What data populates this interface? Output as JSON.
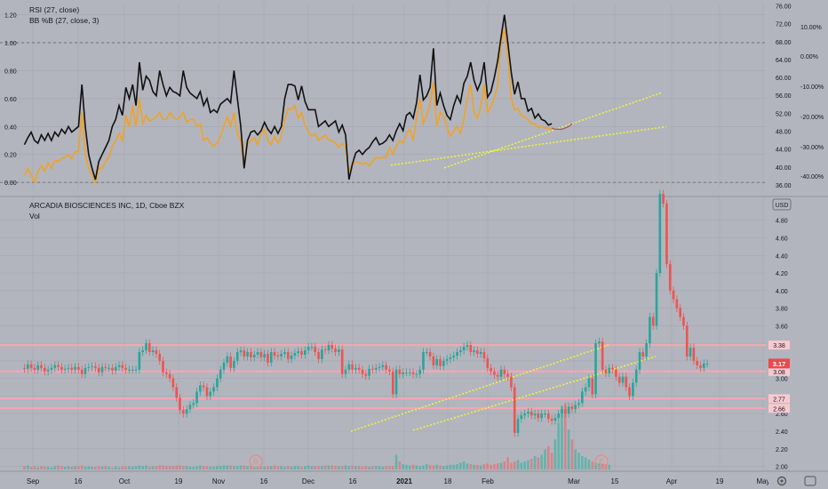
{
  "colors": {
    "background": "#b2b5be",
    "grid": "#a5a8b0",
    "rsi": "#111111",
    "bbpb": "#f5a11c",
    "up": "#26a69a",
    "down": "#ef5350",
    "level_line": "#f8a6b0",
    "trend": "#f0f23c",
    "last_price": "#e74c4c"
  },
  "chart_data": [
    {
      "type": "line",
      "panel": "indicators",
      "legend": [
        "RSI (27, close)",
        "BB %B (27, close, 3)"
      ],
      "left_axis_ticks": [
        "1.20",
        "1.00",
        "0.80",
        "0.60",
        "0.40",
        "0.20",
        "0.00"
      ],
      "left_axis_range": [
        -0.05,
        1.28
      ],
      "right_axis_ticks": [
        "76.00",
        "72.00",
        "68.00",
        "64.00",
        "60.00",
        "56.00",
        "52.00",
        "48.00",
        "44.00",
        "40.00",
        "36.00"
      ],
      "right_axis_range": [
        35,
        76.5
      ],
      "right_pct_ticks": [
        "10.00%",
        "0.00%",
        "-10.00%",
        "-20.00%",
        "-30.00%",
        "-40.00%"
      ],
      "bbpb_reference_lines": [
        1.0,
        0.0
      ],
      "rsi": [
        0.27,
        0.32,
        0.36,
        0.3,
        0.28,
        0.34,
        0.3,
        0.35,
        0.3,
        0.36,
        0.33,
        0.38,
        0.35,
        0.4,
        0.36,
        0.38,
        0.4,
        0.7,
        0.4,
        0.2,
        0.1,
        0.02,
        0.15,
        0.2,
        0.25,
        0.3,
        0.4,
        0.45,
        0.55,
        0.48,
        0.68,
        0.6,
        0.7,
        0.55,
        0.86,
        0.66,
        0.76,
        0.73,
        0.65,
        0.62,
        0.8,
        0.7,
        0.62,
        0.68,
        0.65,
        0.64,
        0.62,
        0.8,
        0.68,
        0.64,
        0.62,
        0.6,
        0.65,
        0.55,
        0.6,
        0.5,
        0.52,
        0.5,
        0.56,
        0.58,
        0.6,
        0.57,
        0.8,
        0.6,
        0.4,
        0.1,
        0.3,
        0.36,
        0.37,
        0.34,
        0.37,
        0.43,
        0.38,
        0.35,
        0.4,
        0.35,
        0.4,
        0.6,
        0.7,
        0.7,
        0.69,
        0.59,
        0.69,
        0.58,
        0.52,
        0.52,
        0.52,
        0.4,
        0.42,
        0.44,
        0.4,
        0.42,
        0.44,
        0.36,
        0.41,
        0.34,
        0.02,
        0.13,
        0.21,
        0.23,
        0.2,
        0.23,
        0.25,
        0.29,
        0.32,
        0.27,
        0.28,
        0.3,
        0.34,
        0.3,
        0.37,
        0.42,
        0.37,
        0.48,
        0.5,
        0.46,
        0.57,
        0.77,
        0.59,
        0.62,
        0.68,
        0.96,
        0.55,
        0.64,
        0.55,
        0.48,
        0.45,
        0.55,
        0.62,
        0.57,
        0.71,
        0.76,
        0.86,
        0.73,
        0.66,
        0.72,
        0.86,
        0.61,
        0.65,
        0.75,
        0.87,
        1.04,
        1.2,
        1.0,
        0.79,
        0.63,
        0.72,
        0.6,
        0.6,
        0.51,
        0.53,
        0.46,
        0.49,
        0.45,
        0.44,
        0.41,
        0.42
      ],
      "bbpb": [
        0.05,
        0.1,
        0.05,
        0.0,
        0.08,
        0.12,
        0.08,
        0.14,
        0.1,
        0.16,
        0.15,
        0.17,
        0.18,
        0.2,
        0.17,
        0.22,
        0.22,
        0.5,
        0.2,
        0.1,
        0.05,
        0.0,
        0.1,
        0.1,
        0.15,
        0.18,
        0.26,
        0.3,
        0.35,
        0.3,
        0.48,
        0.4,
        0.55,
        0.4,
        0.6,
        0.42,
        0.48,
        0.44,
        0.45,
        0.47,
        0.5,
        0.45,
        0.45,
        0.5,
        0.47,
        0.45,
        0.47,
        0.5,
        0.43,
        0.45,
        0.45,
        0.4,
        0.42,
        0.3,
        0.32,
        0.28,
        0.26,
        0.28,
        0.33,
        0.4,
        0.47,
        0.4,
        0.5,
        0.35,
        0.3,
        0.1,
        0.27,
        0.3,
        0.32,
        0.27,
        0.35,
        0.38,
        0.3,
        0.27,
        0.33,
        0.28,
        0.33,
        0.45,
        0.53,
        0.52,
        0.55,
        0.46,
        0.5,
        0.41,
        0.36,
        0.33,
        0.35,
        0.3,
        0.32,
        0.34,
        0.3,
        0.3,
        0.28,
        0.25,
        0.28,
        0.25,
        0.08,
        0.12,
        0.15,
        0.14,
        0.13,
        0.14,
        0.12,
        0.15,
        0.18,
        0.17,
        0.18,
        0.18,
        0.25,
        0.2,
        0.26,
        0.3,
        0.28,
        0.35,
        0.38,
        0.3,
        0.46,
        0.6,
        0.42,
        0.48,
        0.56,
        0.72,
        0.4,
        0.5,
        0.48,
        0.4,
        0.33,
        0.37,
        0.4,
        0.35,
        0.45,
        0.6,
        0.7,
        0.5,
        0.46,
        0.54,
        0.7,
        0.5,
        0.54,
        0.6,
        0.7,
        1.0,
        1.1,
        0.9,
        0.6,
        0.52,
        0.53,
        0.48,
        0.47,
        0.45,
        0.42,
        0.42,
        0.39,
        0.4,
        0.39,
        0.39,
        0.38
      ],
      "bbpb_tail": [
        0.39,
        0.38,
        0.38,
        0.38,
        0.39,
        0.4,
        0.42
      ],
      "trendlines_right_scale": [
        [
          40.4,
          49.0
        ],
        [
          39.8,
          56.6
        ]
      ]
    },
    {
      "type": "candlestick",
      "panel": "price",
      "title": "ARCADIA BIOSCIENCES INC, 1D, Cboe BZX",
      "volume_label": "Vol",
      "currency": "USD",
      "y_ticks": [
        "4.80",
        "4.60",
        "4.40",
        "4.20",
        "4.00",
        "3.80",
        "3.60",
        "3.40",
        "3.20",
        "3.00",
        "2.80",
        "2.60",
        "2.40",
        "2.20",
        "2.00"
      ],
      "y_range": [
        1.965,
        5.06
      ],
      "x_ticks": [
        "Sep",
        "16",
        "Oct",
        "19",
        "Nov",
        "16",
        "Dec",
        "16",
        "2021",
        "18",
        "Feb",
        "Mar",
        "15",
        "Apr",
        "19",
        "May"
      ],
      "horizontal_levels": [
        {
          "value": 3.38,
          "label": "3.38"
        },
        {
          "value": 3.08,
          "label": "3.08"
        },
        {
          "value": 2.77,
          "label": "2.77"
        },
        {
          "value": 2.66,
          "label": "2.66"
        }
      ],
      "last_price": "3.17",
      "candle_open": [
        3.12,
        3.11,
        3.16,
        3.12,
        3.1,
        3.15,
        3.12,
        3.08,
        3.1,
        3.12,
        3.15,
        3.13,
        3.1,
        3.11,
        3.12,
        3.1,
        3.13,
        3.1,
        3.05,
        3.12,
        3.13,
        3.14,
        3.12,
        3.07,
        3.13,
        3.12,
        3.12,
        3.09,
        3.13,
        3.15,
        3.12,
        3.1,
        3.1,
        3.1,
        3.1,
        3.3,
        3.32,
        3.4,
        3.3,
        3.32,
        3.28,
        3.2,
        3.07,
        3.05,
        3.0,
        2.9,
        2.78,
        2.64,
        2.6,
        2.65,
        2.7,
        2.72,
        2.85,
        2.92,
        2.9,
        2.8,
        2.85,
        2.9,
        3.0,
        3.1,
        3.18,
        3.25,
        3.12,
        3.2,
        3.3,
        3.32,
        3.25,
        3.3,
        3.24,
        3.27,
        3.3,
        3.24,
        3.28,
        3.18,
        3.3,
        3.26,
        3.25,
        3.28,
        3.3,
        3.22,
        3.26,
        3.29,
        3.31,
        3.27,
        3.32,
        3.36,
        3.36,
        3.3,
        3.22,
        3.33,
        3.32,
        3.38,
        3.34,
        3.3,
        3.33,
        3.05,
        3.1,
        3.16,
        3.1,
        3.12,
        3.1,
        3.05,
        3.03,
        3.11,
        3.1,
        3.12,
        3.13,
        3.15,
        3.1,
        3.08,
        2.82,
        3.1,
        3.05,
        3.07,
        3.07,
        3.07,
        3.05,
        3.05,
        3.1,
        3.3,
        3.3,
        3.25,
        3.15,
        3.22,
        3.14,
        3.2,
        3.22,
        3.24,
        3.26,
        3.3,
        3.32,
        3.36,
        3.38,
        3.3,
        3.32,
        3.28,
        3.3,
        3.23,
        3.12,
        3.08,
        3.04,
        3.02,
        3.1,
        3.05,
        3.02,
        2.9,
        2.38,
        2.54,
        2.58,
        2.6,
        2.62,
        2.58,
        2.6,
        2.55,
        2.6,
        2.6,
        2.54,
        2.52,
        2.55,
        2.6,
        2.65,
        2.6,
        2.68,
        2.65,
        2.7,
        2.72,
        2.85,
        2.9,
        3.0,
        2.82,
        3.4,
        3.42,
        3.1,
        3.06,
        3.12,
        3.1,
        3.02,
        2.95,
        3.02,
        2.9,
        2.8,
        2.95,
        3.1,
        3.3,
        3.25,
        3.4,
        3.7,
        3.6,
        4.2,
        5.1,
        4.99,
        4.3,
        4.0,
        3.9,
        3.8,
        3.7,
        3.6,
        3.25,
        3.35,
        3.2,
        3.15,
        3.12,
        3.17
      ],
      "candle_close": [
        3.11,
        3.16,
        3.12,
        3.1,
        3.15,
        3.12,
        3.08,
        3.1,
        3.12,
        3.15,
        3.13,
        3.1,
        3.11,
        3.12,
        3.1,
        3.13,
        3.1,
        3.05,
        3.12,
        3.13,
        3.14,
        3.12,
        3.07,
        3.13,
        3.12,
        3.12,
        3.09,
        3.13,
        3.15,
        3.12,
        3.1,
        3.1,
        3.1,
        3.1,
        3.3,
        3.32,
        3.4,
        3.3,
        3.32,
        3.28,
        3.2,
        3.07,
        3.05,
        3.0,
        2.9,
        2.78,
        2.64,
        2.6,
        2.65,
        2.7,
        2.72,
        2.85,
        2.92,
        2.9,
        2.8,
        2.85,
        2.9,
        3.0,
        3.1,
        3.18,
        3.25,
        3.12,
        3.2,
        3.3,
        3.32,
        3.25,
        3.3,
        3.24,
        3.27,
        3.3,
        3.24,
        3.28,
        3.18,
        3.3,
        3.26,
        3.25,
        3.28,
        3.3,
        3.22,
        3.26,
        3.29,
        3.31,
        3.27,
        3.32,
        3.36,
        3.36,
        3.3,
        3.22,
        3.33,
        3.32,
        3.38,
        3.34,
        3.3,
        3.33,
        3.05,
        3.1,
        3.16,
        3.1,
        3.12,
        3.1,
        3.05,
        3.03,
        3.11,
        3.1,
        3.12,
        3.13,
        3.15,
        3.1,
        3.08,
        2.82,
        3.1,
        3.05,
        3.07,
        3.07,
        3.07,
        3.05,
        3.05,
        3.1,
        3.3,
        3.3,
        3.25,
        3.15,
        3.22,
        3.14,
        3.2,
        3.22,
        3.24,
        3.26,
        3.3,
        3.32,
        3.36,
        3.38,
        3.3,
        3.32,
        3.28,
        3.3,
        3.23,
        3.12,
        3.08,
        3.04,
        3.02,
        3.1,
        3.05,
        3.02,
        2.9,
        2.38,
        2.54,
        2.58,
        2.6,
        2.62,
        2.58,
        2.6,
        2.55,
        2.6,
        2.6,
        2.54,
        2.52,
        2.55,
        2.6,
        2.65,
        2.6,
        2.68,
        2.65,
        2.7,
        2.72,
        2.85,
        2.9,
        3.0,
        2.82,
        3.4,
        3.42,
        3.1,
        3.06,
        3.12,
        3.1,
        3.02,
        2.95,
        3.02,
        2.9,
        2.8,
        2.95,
        3.1,
        3.3,
        3.25,
        3.4,
        3.7,
        3.6,
        4.2,
        5.1,
        4.99,
        4.3,
        4.0,
        3.9,
        3.8,
        3.7,
        3.6,
        3.25,
        3.35,
        3.2,
        3.15,
        3.12,
        3.17,
        3.17
      ],
      "volume": [
        0.05,
        0.06,
        0.04,
        0.05,
        0.03,
        0.05,
        0.04,
        0.04,
        0.03,
        0.05,
        0.06,
        0.05,
        0.04,
        0.05,
        0.04,
        0.05,
        0.05,
        0.06,
        0.04,
        0.05,
        0.04,
        0.04,
        0.05,
        0.04,
        0.05,
        0.04,
        0.03,
        0.04,
        0.03,
        0.05,
        0.04,
        0.05,
        0.04,
        0.05,
        0.06,
        0.05,
        0.06,
        0.04,
        0.05,
        0.05,
        0.06,
        0.06,
        0.05,
        0.05,
        0.05,
        0.06,
        0.06,
        0.05,
        0.05,
        0.04,
        0.04,
        0.05,
        0.06,
        0.05,
        0.05,
        0.04,
        0.04,
        0.05,
        0.05,
        0.06,
        0.06,
        0.06,
        0.05,
        0.05,
        0.06,
        0.06,
        0.05,
        0.05,
        0.04,
        0.04,
        0.05,
        0.04,
        0.05,
        0.05,
        0.06,
        0.05,
        0.05,
        0.04,
        0.05,
        0.04,
        0.05,
        0.05,
        0.04,
        0.05,
        0.06,
        0.05,
        0.05,
        0.05,
        0.05,
        0.06,
        0.06,
        0.06,
        0.05,
        0.05,
        0.05,
        0.06,
        0.05,
        0.06,
        0.05,
        0.05,
        0.04,
        0.05,
        0.04,
        0.05,
        0.05,
        0.05,
        0.04,
        0.05,
        0.05,
        0.05,
        0.22,
        0.12,
        0.08,
        0.07,
        0.06,
        0.07,
        0.06,
        0.05,
        0.06,
        0.08,
        0.07,
        0.06,
        0.07,
        0.06,
        0.05,
        0.06,
        0.07,
        0.07,
        0.08,
        0.1,
        0.12,
        0.09,
        0.08,
        0.07,
        0.07,
        0.06,
        0.08,
        0.09,
        0.07,
        0.08,
        0.09,
        0.1,
        0.12,
        0.18,
        0.1,
        0.12,
        0.14,
        0.1,
        0.12,
        0.14,
        0.16,
        0.2,
        0.18,
        0.22,
        0.3,
        0.35,
        0.25,
        0.45,
        0.7,
        0.95,
        1.0,
        0.6,
        0.45,
        0.3,
        0.25,
        0.2,
        0.18,
        0.15,
        0.12,
        0.1,
        0.09,
        0.08,
        0.08,
        0.07
      ]
    }
  ]
}
